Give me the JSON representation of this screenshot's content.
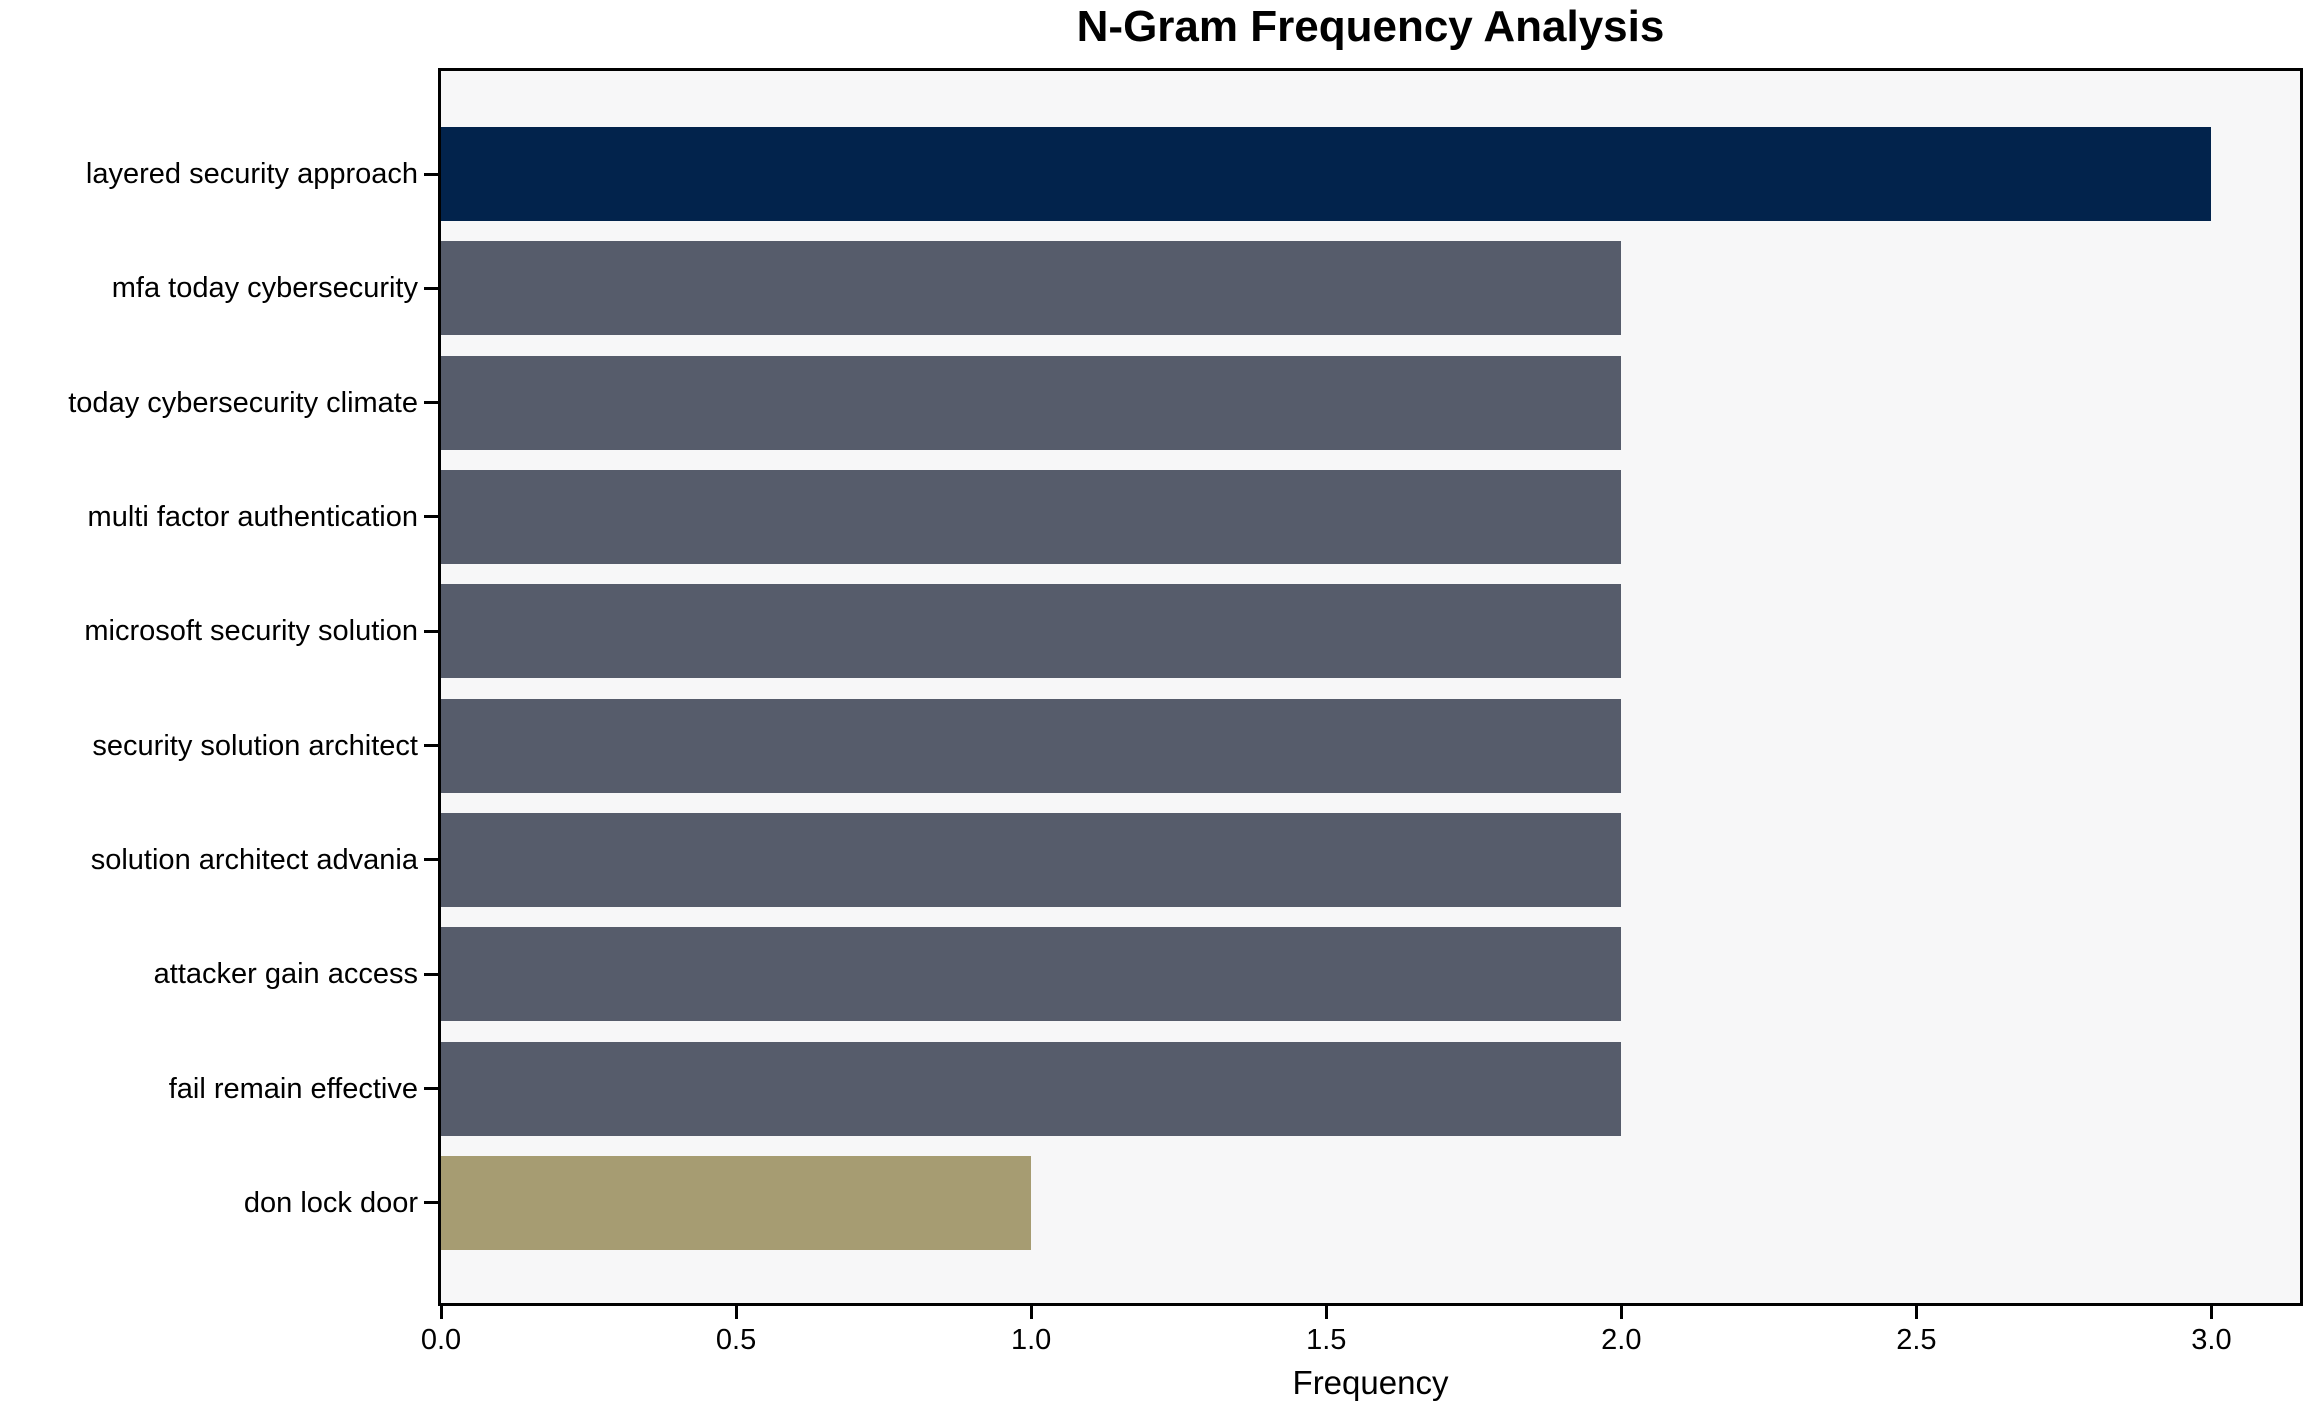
{
  "chart_data": {
    "type": "bar",
    "orientation": "horizontal",
    "title": "N-Gram Frequency Analysis",
    "xlabel": "Frequency",
    "ylabel": "",
    "categories": [
      "layered security approach",
      "mfa today cybersecurity",
      "today cybersecurity climate",
      "multi factor authentication",
      "microsoft security solution",
      "security solution architect",
      "solution architect advania",
      "attacker gain access",
      "fail remain effective",
      "don lock door"
    ],
    "values": [
      3,
      2,
      2,
      2,
      2,
      2,
      2,
      2,
      2,
      1
    ],
    "bar_colors": [
      "#02234c",
      "#565c6b",
      "#565c6b",
      "#565c6b",
      "#565c6b",
      "#565c6b",
      "#565c6b",
      "#565c6b",
      "#565c6b",
      "#a69c72"
    ],
    "x_ticks": [
      {
        "value": 0.0,
        "label": "0.0"
      },
      {
        "value": 0.5,
        "label": "0.5"
      },
      {
        "value": 1.0,
        "label": "1.0"
      },
      {
        "value": 1.5,
        "label": "1.5"
      },
      {
        "value": 2.0,
        "label": "2.0"
      },
      {
        "value": 2.5,
        "label": "2.5"
      },
      {
        "value": 3.0,
        "label": "3.0"
      }
    ],
    "xlim": [
      0,
      3.15
    ],
    "grid": false,
    "legend_position": "none",
    "colors": {
      "max_bar": "#02234c",
      "default_bar": "#565c6b",
      "min_bar": "#a69c72",
      "plot_background": "#f7f7f8",
      "figure_background": "#ffffff",
      "axis": "#000000",
      "text": "#000000"
    }
  }
}
